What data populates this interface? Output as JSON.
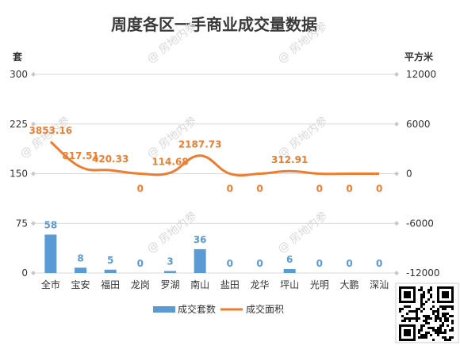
{
  "chart_data": {
    "type": "bar+line",
    "title": "周度各区一手商业成交量数据",
    "left_axis_unit": "套",
    "right_axis_unit": "平方米",
    "categories": [
      "全市",
      "宝安",
      "福田",
      "龙岗",
      "罗湖",
      "南山",
      "盐田",
      "龙华",
      "坪山",
      "光明",
      "大鹏",
      "深汕"
    ],
    "series": [
      {
        "name": "成交套数",
        "type": "bar",
        "axis": "left",
        "color": "#5b9bd5",
        "values": [
          58,
          8,
          5,
          0,
          3,
          36,
          0,
          0,
          6,
          0,
          0,
          0
        ],
        "labels": [
          "58",
          "8",
          "5",
          "0",
          "3",
          "36",
          "0",
          "0",
          "6",
          "0",
          "0",
          "0"
        ]
      },
      {
        "name": "成交面积",
        "type": "line",
        "axis": "right",
        "color": "#ed7d31",
        "values": [
          3853.16,
          817.51,
          420.33,
          0,
          114.68,
          2187.73,
          0,
          0,
          312.91,
          0,
          0,
          0
        ],
        "labels": [
          "3853.16",
          "817.51",
          "420.33",
          "0",
          "114.68",
          "2187.73",
          "0",
          "0",
          "312.91",
          "0",
          "0",
          "0"
        ]
      }
    ],
    "left_ylim": [
      0,
      300
    ],
    "left_ticks": [
      "0",
      "75",
      "150",
      "225",
      "300"
    ],
    "right_ylim": [
      -12000,
      12000
    ],
    "right_ticks": [
      "-12000",
      "-6000",
      "0",
      "6000",
      "12000"
    ],
    "legend_position": "bottom",
    "grid": true
  },
  "watermark": "@ 房地内参"
}
